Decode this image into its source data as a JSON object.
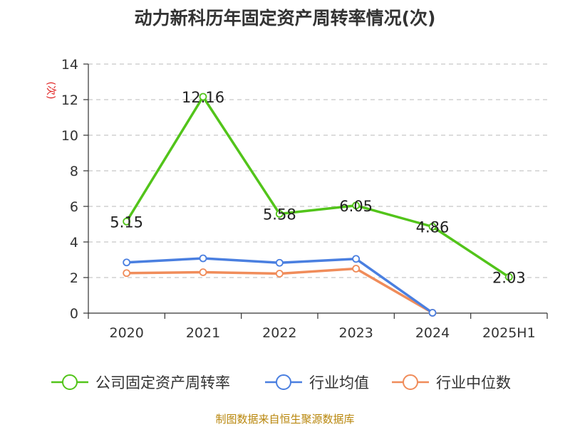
{
  "chart_data": {
    "type": "line",
    "title": "动力新科历年固定资产周转率情况(次)",
    "y_unit": "(次)",
    "categories": [
      "2020",
      "2021",
      "2022",
      "2023",
      "2024",
      "2025H1"
    ],
    "yticks": [
      "0",
      "2",
      "4",
      "6",
      "8",
      "10",
      "12",
      "14"
    ],
    "ylim": [
      0,
      14
    ],
    "grid": true,
    "legend_position": "bottom",
    "series": [
      {
        "name": "公司固定资产周转率",
        "color": "#52c41a",
        "values": [
          5.15,
          12.16,
          5.58,
          6.05,
          4.86,
          2.03
        ],
        "labels": [
          "5.15",
          "12.16",
          "5.58",
          "6.05",
          "4.86",
          "2.03"
        ]
      },
      {
        "name": "行业均值",
        "color": "#4a7fe0",
        "values": [
          2.85,
          3.08,
          2.83,
          3.05,
          0.02,
          null
        ]
      },
      {
        "name": "行业中位数",
        "color": "#f08c5a",
        "values": [
          2.25,
          2.3,
          2.22,
          2.5,
          0.02,
          null
        ]
      }
    ]
  },
  "source_note": "制图数据来自恒生聚源数据库"
}
